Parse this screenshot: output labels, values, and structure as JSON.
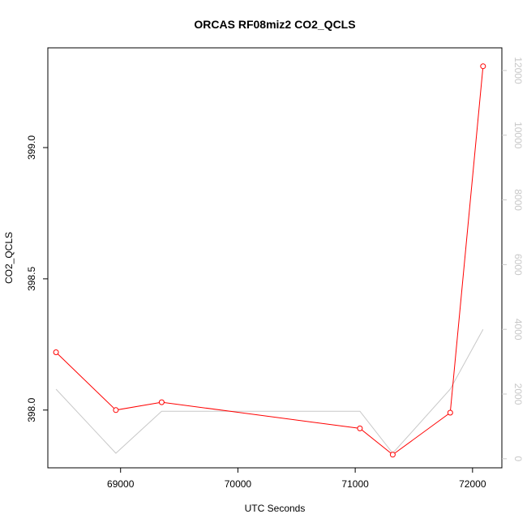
{
  "chart_data": {
    "type": "line",
    "title": "ORCAS RF08miz2 CO2_QCLS",
    "xlabel": "UTC Seconds",
    "ylabel": "CO2_QCLS",
    "xlim": [
      68380,
      72250
    ],
    "ylim": [
      397.78,
      399.38
    ],
    "x_ticks": [
      69000,
      70000,
      71000,
      72000
    ],
    "x_tick_labels": [
      "69000",
      "70000",
      "71000",
      "72000"
    ],
    "y_ticks": [
      398.0,
      398.5,
      399.0
    ],
    "y_tick_labels": [
      "398.0",
      "398.5",
      "399.0"
    ],
    "y2_lim": [
      -280,
      12700
    ],
    "y2_ticks": [
      0,
      2000,
      4000,
      6000,
      8000,
      10000,
      12000
    ],
    "y2_tick_labels": [
      "0",
      "2000",
      "4000",
      "6000",
      "8000",
      "10000",
      "12000"
    ],
    "grid": false,
    "series": [
      {
        "axis": "left",
        "color": "#ff0000",
        "markers": "open-circle",
        "x": [
          68450,
          68960,
          69350,
          71040,
          71320,
          71810,
          72090
        ],
        "y": [
          398.22,
          398.0,
          398.03,
          397.93,
          397.83,
          397.99,
          399.31
        ]
      },
      {
        "axis": "right",
        "color": "#c8c8c8",
        "markers": "none",
        "x": [
          68450,
          68960,
          69350,
          71040,
          71320,
          71810,
          72090
        ],
        "y": [
          2150,
          170,
          1470,
          1470,
          170,
          2150,
          4000
        ]
      }
    ],
    "colors": {
      "axis": "#000000",
      "right_axis": "#c8c8c8",
      "background": "#ffffff"
    }
  }
}
